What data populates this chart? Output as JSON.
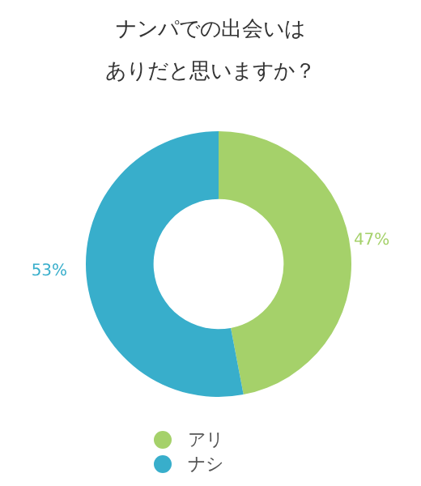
{
  "chart_data": {
    "type": "donut",
    "title": "ナンパでの出会いはありだと思いますか？",
    "categories": [
      "アリ",
      "ナシ"
    ],
    "values": [
      47,
      53
    ],
    "colors": [
      "#a5d16a",
      "#38aecb"
    ],
    "value_labels": [
      "47%",
      "53%"
    ],
    "legend": "bottom"
  }
}
